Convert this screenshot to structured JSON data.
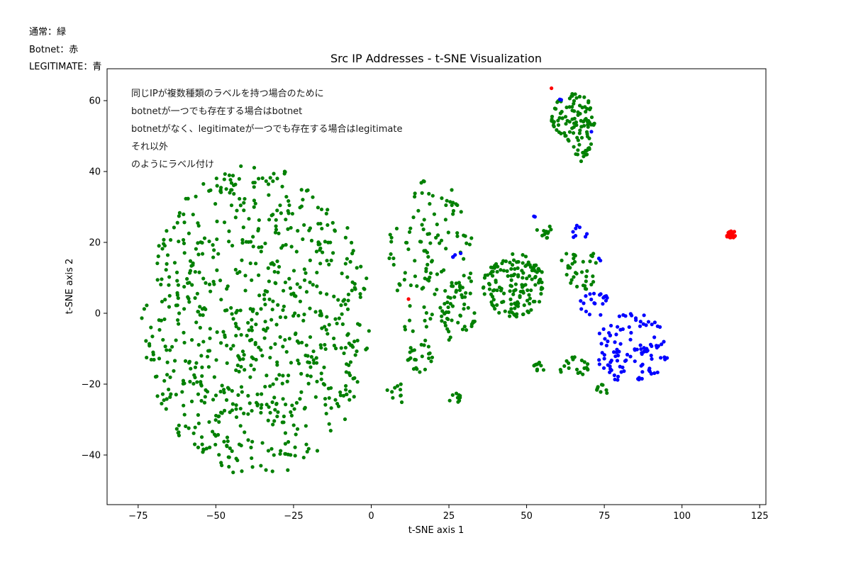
{
  "legend_notes": [
    "通常：緑",
    "Botnet：赤",
    "LEGITIMATE：青"
  ],
  "annotation_lines": [
    "同じIPが複数種類のラベルを持つ場合のために",
    "botnetが一つでも存在する場合はbotnet",
    "botnetがなく、legitimateが一つでも存在する場合はlegitimate",
    "それ以外",
    "のようにラベル付け"
  ],
  "chart_data": {
    "type": "scatter",
    "title": "Src IP Addresses - t-SNE Visualization",
    "xlabel": "t-SNE axis 1",
    "ylabel": "t-SNE axis 2",
    "xlim": [
      -85,
      127
    ],
    "ylim": [
      -54,
      69
    ],
    "x_ticks": [
      -75,
      -50,
      -25,
      0,
      25,
      50,
      75,
      100,
      125
    ],
    "y_ticks": [
      -40,
      -20,
      0,
      20,
      40,
      60
    ],
    "x_tick_labels": [
      "−75",
      "−50",
      "−25",
      "0",
      "25",
      "50",
      "75",
      "100",
      "125"
    ],
    "y_tick_labels": [
      "−40",
      "−20",
      "0",
      "20",
      "40",
      "60"
    ],
    "grid": false,
    "colors": {
      "normal": "#008000",
      "botnet": "#ff0000",
      "legitimate": "#0000ff"
    },
    "series": [
      {
        "category": "normal",
        "color": "#008000",
        "clusters": [
          {
            "cx": -37,
            "cy": -2,
            "rx": 37,
            "ry": 44,
            "n": 760,
            "shape": "ellipse"
          },
          {
            "cx": 19,
            "cy": 14,
            "rx": 14,
            "ry": 24,
            "n": 130,
            "shape": "ellipse"
          },
          {
            "cx": 28,
            "cy": 1,
            "rx": 6,
            "ry": 8,
            "n": 40,
            "shape": "ellipse"
          },
          {
            "cx": 15,
            "cy": -13,
            "rx": 5,
            "ry": 4,
            "n": 20,
            "shape": "ellipse"
          },
          {
            "cx": 8,
            "cy": -23,
            "rx": 3,
            "ry": 4,
            "n": 10,
            "shape": "ellipse"
          },
          {
            "cx": 27,
            "cy": -24,
            "rx": 2,
            "ry": 1.5,
            "n": 10,
            "shape": "ellipse"
          },
          {
            "cx": 46,
            "cy": 8,
            "rx": 10,
            "ry": 9,
            "n": 150,
            "shape": "ellipse"
          },
          {
            "cx": 56,
            "cy": 23,
            "rx": 3,
            "ry": 2,
            "n": 12,
            "shape": "ellipse"
          },
          {
            "cx": 65,
            "cy": 55,
            "rx": 7,
            "ry": 7,
            "n": 90,
            "shape": "ellipse"
          },
          {
            "cx": 68,
            "cy": 47,
            "rx": 3,
            "ry": 5,
            "n": 20,
            "shape": "ellipse"
          },
          {
            "cx": 67,
            "cy": 13,
            "rx": 6,
            "ry": 7,
            "n": 35,
            "shape": "ellipse"
          },
          {
            "cx": 65,
            "cy": -15,
            "rx": 5,
            "ry": 3,
            "n": 20,
            "shape": "ellipse"
          },
          {
            "cx": 54,
            "cy": -15,
            "rx": 2,
            "ry": 1.5,
            "n": 10,
            "shape": "ellipse"
          },
          {
            "cx": 74,
            "cy": -22,
            "rx": 2,
            "ry": 2,
            "n": 8,
            "shape": "ellipse"
          }
        ]
      },
      {
        "category": "legitimate",
        "color": "#0000ff",
        "clusters": [
          {
            "cx": 84,
            "cy": -10,
            "rx": 12,
            "ry": 10,
            "n": 110,
            "shape": "ellipse"
          },
          {
            "cx": 72,
            "cy": 3,
            "rx": 5,
            "ry": 4,
            "n": 20,
            "shape": "ellipse"
          },
          {
            "cx": 67,
            "cy": 23,
            "rx": 3,
            "ry": 2,
            "n": 8,
            "shape": "ellipse"
          },
          {
            "cx": 28,
            "cy": 16,
            "rx": 2,
            "ry": 1,
            "n": 4,
            "shape": "ellipse"
          },
          {
            "cx": 52,
            "cy": 27,
            "rx": 1,
            "ry": 0.5,
            "n": 2,
            "shape": "ellipse"
          },
          {
            "cx": 61,
            "cy": 61,
            "rx": 1,
            "ry": 1,
            "n": 2,
            "shape": "ellipse"
          },
          {
            "cx": 71,
            "cy": 51,
            "rx": 1,
            "ry": 1,
            "n": 1,
            "shape": "ellipse"
          },
          {
            "cx": 74,
            "cy": 15,
            "rx": 1,
            "ry": 1,
            "n": 2,
            "shape": "ellipse"
          }
        ]
      },
      {
        "category": "botnet",
        "color": "#ff0000",
        "clusters": [
          {
            "cx": 116,
            "cy": 22,
            "rx": 1.6,
            "ry": 1.3,
            "n": 22,
            "shape": "ellipse"
          }
        ],
        "points": [
          {
            "x": 12,
            "y": 4
          },
          {
            "x": 58,
            "y": 63.5
          }
        ]
      }
    ]
  }
}
